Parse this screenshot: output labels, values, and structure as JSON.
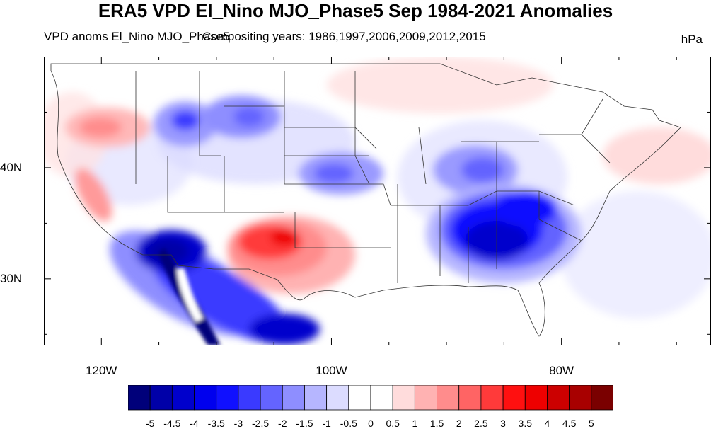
{
  "title": "ERA5 VPD El_Nino MJO_Phase5 Sep 1984-2021 Anomalies",
  "subtitle_left": "VPD anoms El_Nino MJO_Phase5",
  "subtitle_overlay": "Compositing years: 1986,1997,2006,2009,2012,2015",
  "unit": "hPa",
  "axes": {
    "lat_ticks": [
      {
        "value": 40,
        "label": "40N"
      },
      {
        "value": 30,
        "label": "30N"
      }
    ],
    "lon_ticks": [
      {
        "value": -120,
        "label": "120W"
      },
      {
        "value": -100,
        "label": "100W"
      },
      {
        "value": -80,
        "label": "80W"
      }
    ],
    "lon_range": [
      -125,
      -67
    ],
    "lat_range": [
      24,
      50
    ]
  },
  "colorbar": {
    "labels": [
      "-5",
      "-4.5",
      "-4",
      "-3.5",
      "-3",
      "-2.5",
      "-2",
      "-1.5",
      "-1",
      "-0.5",
      "0",
      "0.5",
      "1",
      "1.5",
      "2",
      "2.5",
      "3",
      "3.5",
      "4",
      "4.5",
      "5"
    ],
    "colors": [
      "#00007a",
      "#0000a8",
      "#0000cc",
      "#0000ee",
      "#1010ff",
      "#3a3aff",
      "#6464ff",
      "#8e8eff",
      "#b6b6ff",
      "#dcdcff",
      "#ffffff",
      "#ffffff",
      "#ffdcdc",
      "#ffb2b2",
      "#ff8c8c",
      "#ff6464",
      "#ff3a3a",
      "#ff1010",
      "#ee0000",
      "#cc0000",
      "#a80000",
      "#7a0000"
    ]
  },
  "anomaly_features": [
    {
      "name": "california-coast-negative",
      "lon": -114,
      "lat": 31,
      "value": -5
    },
    {
      "name": "baja-negative",
      "lon": -112,
      "lat": 28,
      "value": -4.5
    },
    {
      "name": "mexico-sierra-negative",
      "lon": -105,
      "lat": 26,
      "value": -4
    },
    {
      "name": "southeast-negative",
      "lon": -84,
      "lat": 33,
      "value": -4.5
    },
    {
      "name": "tennessee-negative",
      "lon": -86,
      "lat": 36,
      "value": -3
    },
    {
      "name": "ohio-valley-negative",
      "lon": -87,
      "lat": 40,
      "value": -2
    },
    {
      "name": "montana-negative",
      "lon": -112,
      "lat": 45,
      "value": -3
    },
    {
      "name": "wyoming-negative",
      "lon": -107,
      "lat": 45,
      "value": -2.5
    },
    {
      "name": "nebraska-negative",
      "lon": -98,
      "lat": 40,
      "value": -2
    },
    {
      "name": "texas-positive",
      "lon": -103,
      "lat": 33,
      "value": 3
    },
    {
      "name": "central-california-positive",
      "lon": -120,
      "lat": 37,
      "value": 2
    },
    {
      "name": "oregon-positive",
      "lon": -120,
      "lat": 44.5,
      "value": 1.5
    },
    {
      "name": "atlantic-positive",
      "lon": -70,
      "lat": 40,
      "value": 1
    },
    {
      "name": "great-lakes-positive",
      "lon": -88,
      "lat": 47,
      "value": 0.5
    }
  ]
}
